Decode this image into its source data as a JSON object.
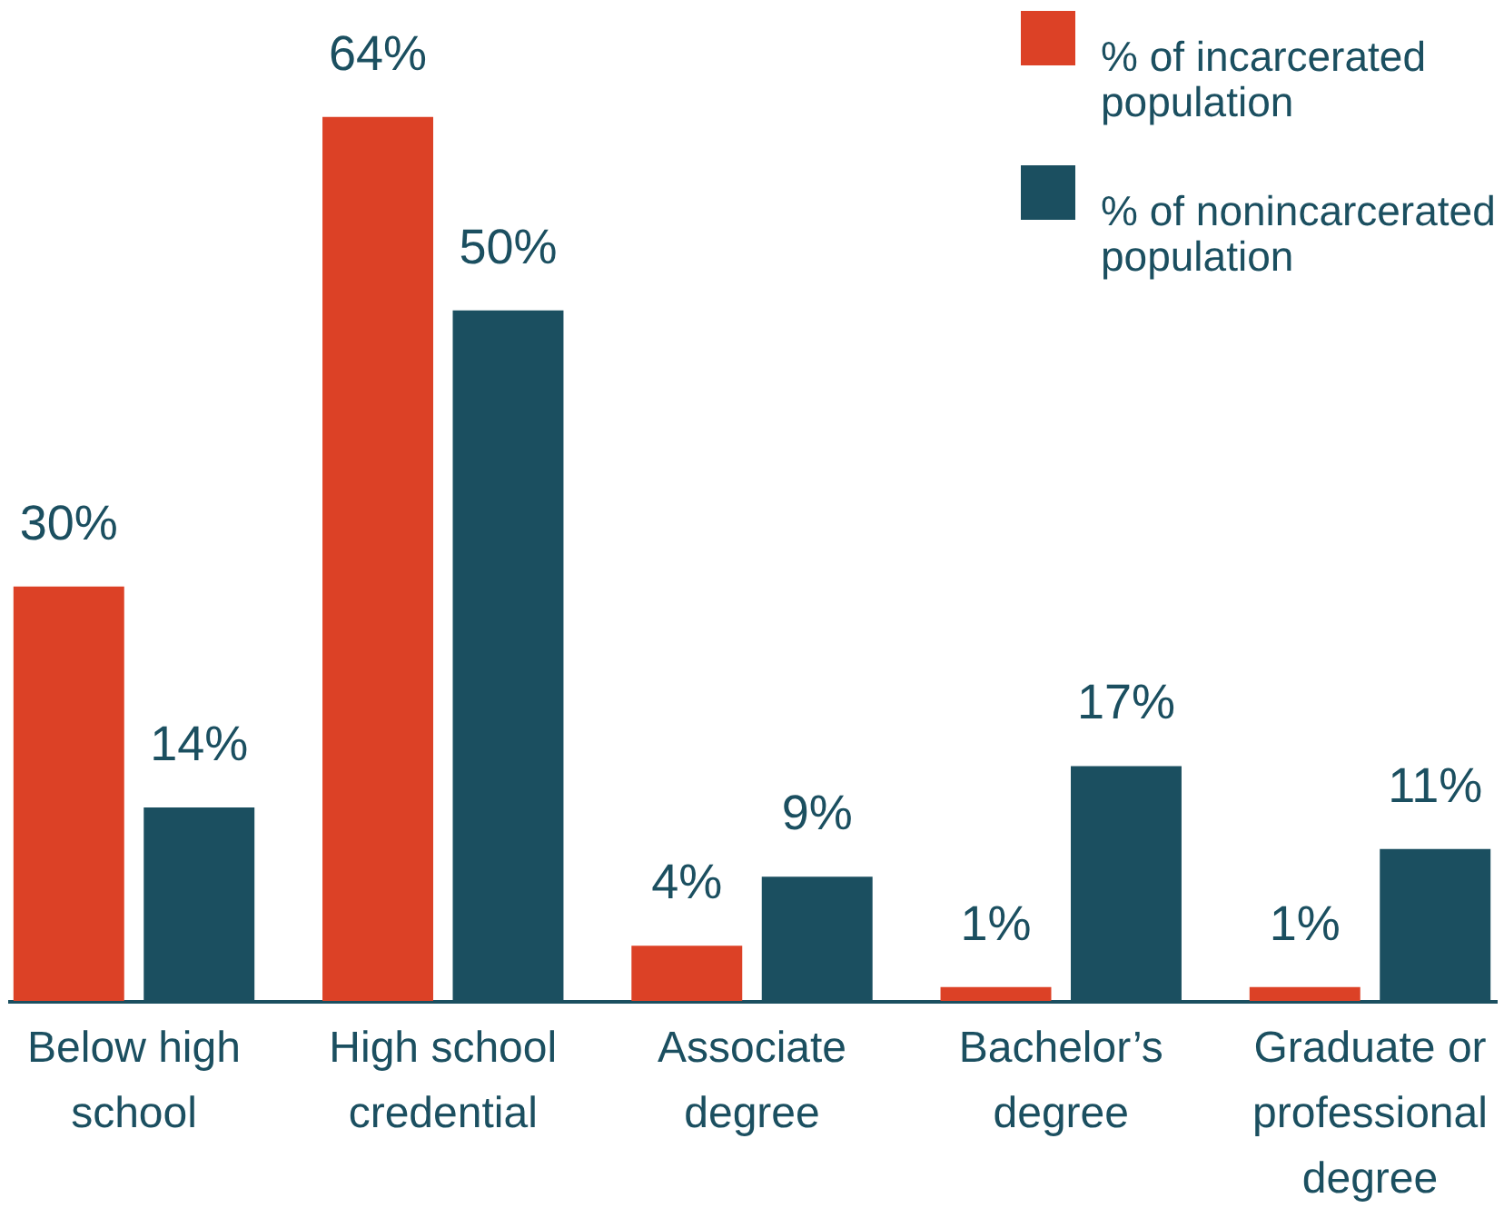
{
  "chart_data": {
    "type": "bar",
    "categories": [
      "Below high school",
      "High school credential",
      "Associate degree",
      "Bachelor’s degree",
      "Graduate or professional degree"
    ],
    "series": [
      {
        "name": "% of incarcerated population",
        "color": "#dc4126",
        "values": [
          30,
          64,
          4,
          1,
          1
        ],
        "value_labels": [
          "30%",
          "64%",
          "4%",
          "1%",
          "1%"
        ]
      },
      {
        "name": "% of nonincarcerated population",
        "color": "#1b4f60",
        "values": [
          14,
          50,
          9,
          17,
          11
        ],
        "value_labels": [
          "14%",
          "50%",
          "9%",
          "17%",
          "11%"
        ]
      }
    ],
    "legend": "top right"
  }
}
